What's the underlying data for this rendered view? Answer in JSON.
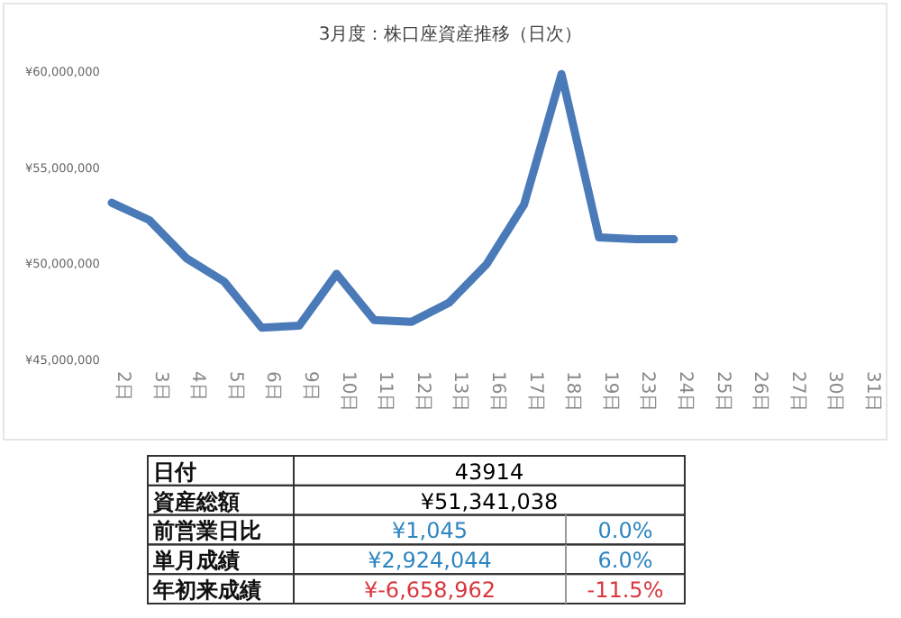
{
  "chart_data": {
    "type": "line",
    "title": "3月度：株口座資産推移（日次）",
    "categories": [
      "2日",
      "3日",
      "4日",
      "5日",
      "6日",
      "9日",
      "10日",
      "11日",
      "12日",
      "13日",
      "16日",
      "17日",
      "18日",
      "19日",
      "23日",
      "24日",
      "25日",
      "26日",
      "27日",
      "30日",
      "31日"
    ],
    "series": [
      {
        "color": "#4a7ab8",
        "values": [
          53200000,
          52300000,
          50300000,
          49100000,
          46700000,
          46800000,
          49500000,
          47100000,
          47000000,
          48000000,
          50000000,
          53100000,
          59900000,
          51400000,
          51300000,
          51300000,
          null,
          null,
          null,
          null,
          null
        ]
      }
    ],
    "ylim": [
      45000000,
      60000000
    ],
    "yticks": [
      {
        "value": 45000000,
        "label": "¥45,000,000"
      },
      {
        "value": 50000000,
        "label": "¥50,000,000"
      },
      {
        "value": 55000000,
        "label": "¥55,000,000"
      },
      {
        "value": 60000000,
        "label": "¥60,000,000"
      }
    ],
    "marker": "none",
    "line_style": "solid",
    "annotations": [
      "日付",
      "43914",
      "資産総額",
      "¥51,341,038",
      "前営業日比",
      "¥1,045",
      "0.0%",
      "単月成績",
      "¥2,924,044",
      "6.0%",
      "年初来成績",
      "¥-6,658,962",
      "-11.5%"
    ]
  }
}
